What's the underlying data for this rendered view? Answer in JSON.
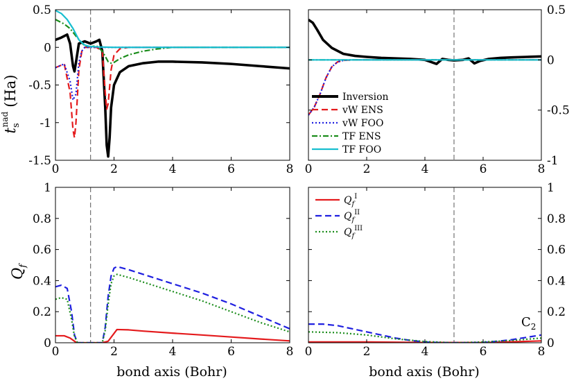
{
  "chart_data": [
    {
      "type": "line",
      "panel": "top-left",
      "ylabel_main": "t",
      "ylabel_sub": "s",
      "ylabel_sup": "nad",
      "ylabel_unit": "(Ha)",
      "xlim": [
        0,
        8
      ],
      "ylim": [
        -1.5,
        0.5
      ],
      "xticks": [
        "0",
        "2",
        "4",
        "6",
        "8"
      ],
      "yticks": [
        "0.5",
        "0",
        "-0.5",
        "-1",
        "-1.5"
      ],
      "ytick_values": [
        0.5,
        0,
        -0.5,
        -1,
        -1.5
      ],
      "vline": 1.2,
      "series": [
        {
          "name": "Inversion",
          "color": "#000000",
          "dash": "solid",
          "x": [
            0,
            0.2,
            0.4,
            0.5,
            0.6,
            0.65,
            0.7,
            0.8,
            1.0,
            1.2,
            1.4,
            1.5,
            1.6,
            1.7,
            1.75,
            1.8,
            1.85,
            1.9,
            2.0,
            2.2,
            2.5,
            3,
            3.5,
            4,
            5,
            6,
            7,
            8
          ],
          "y": [
            0.1,
            0.13,
            0.17,
            0.05,
            -0.25,
            -0.32,
            -0.2,
            0.05,
            0.08,
            0.05,
            0.08,
            0.1,
            -0.05,
            -0.8,
            -1.3,
            -1.45,
            -1.2,
            -0.8,
            -0.5,
            -0.33,
            -0.25,
            -0.21,
            -0.19,
            -0.19,
            -0.2,
            -0.22,
            -0.25,
            -0.28
          ]
        },
        {
          "name": "vW ENS",
          "color": "#e41a1c",
          "dash": "dash",
          "x": [
            0,
            0.3,
            0.5,
            0.6,
            0.65,
            0.7,
            0.8,
            0.9,
            1.0,
            1.1,
            1.2,
            1.4,
            1.6,
            1.7,
            1.75,
            1.8,
            1.9,
            2.0,
            2.2,
            2.5,
            3,
            3.5,
            4,
            8
          ],
          "y": [
            -0.27,
            -0.22,
            -0.6,
            -1.1,
            -1.2,
            -1.0,
            -0.3,
            -0.05,
            0,
            0,
            0,
            0,
            -0.05,
            -0.6,
            -0.82,
            -0.75,
            -0.3,
            -0.1,
            -0.02,
            0,
            0,
            0,
            0,
            0
          ]
        },
        {
          "name": "vW FOO",
          "color": "#1f1fe0",
          "dash": "dot",
          "x": [
            0,
            0.3,
            0.5,
            0.6,
            0.7,
            0.8,
            0.9,
            1.0,
            1.2,
            1.5,
            2,
            8
          ],
          "y": [
            -0.27,
            -0.22,
            -0.45,
            -0.7,
            -0.62,
            -0.2,
            -0.05,
            0,
            0,
            0,
            0,
            0
          ]
        },
        {
          "name": "TF ENS",
          "color": "#1a8c1a",
          "dash": "dashdot",
          "x": [
            0,
            0.3,
            0.5,
            0.7,
            0.9,
            1.0,
            1.1,
            1.2,
            1.4,
            1.6,
            1.7,
            1.8,
            1.9,
            2.0,
            2.2,
            2.5,
            3,
            3.5,
            4,
            5,
            8
          ],
          "y": [
            0.37,
            0.31,
            0.25,
            0.15,
            0.06,
            0.02,
            0.01,
            0.01,
            0.02,
            -0.05,
            -0.12,
            -0.19,
            -0.21,
            -0.2,
            -0.15,
            -0.1,
            -0.05,
            -0.02,
            0,
            0,
            0
          ]
        },
        {
          "name": "TF FOO",
          "color": "#17becf",
          "dash": "solid",
          "x": [
            0,
            0.2,
            0.4,
            0.6,
            0.8,
            1.0,
            1.2,
            1.5,
            2,
            8
          ],
          "y": [
            0.49,
            0.45,
            0.37,
            0.25,
            0.1,
            0.03,
            0.01,
            0.005,
            0,
            0
          ]
        }
      ]
    },
    {
      "type": "line",
      "panel": "top-right",
      "xlim": [
        0,
        8
      ],
      "ylim": [
        -1,
        0.5
      ],
      "xticks": [
        "0",
        "2",
        "4",
        "6",
        "8"
      ],
      "yticks": [
        "0.5",
        "0",
        "-0.5",
        "-1"
      ],
      "ytick_values": [
        0.5,
        0,
        -0.5,
        -1
      ],
      "vline": 5,
      "series": [
        {
          "name": "Inversion",
          "color": "#000000",
          "dash": "solid",
          "x": [
            0,
            0.15,
            0.3,
            0.5,
            0.8,
            1.2,
            1.6,
            2,
            2.5,
            3,
            3.5,
            4,
            4.2,
            4.4,
            4.6,
            4.8,
            5.0,
            5.3,
            5.5,
            5.7,
            5.9,
            6.2,
            6.6,
            7,
            7.5,
            8
          ],
          "y": [
            0.4,
            0.37,
            0.3,
            0.2,
            0.12,
            0.06,
            0.04,
            0.03,
            0.02,
            0.015,
            0.01,
            0.0,
            -0.02,
            -0.04,
            0.01,
            0.0,
            -0.005,
            0.0,
            0.015,
            -0.035,
            -0.01,
            0.01,
            0.02,
            0.025,
            0.03,
            0.035
          ]
        },
        {
          "name": "vW ENS",
          "color": "#e41a1c",
          "dash": "dash",
          "x": [
            0,
            0.2,
            0.4,
            0.6,
            0.8,
            1.0,
            1.2,
            1.5,
            2,
            8
          ],
          "y": [
            -0.55,
            -0.47,
            -0.34,
            -0.18,
            -0.07,
            -0.02,
            -0.005,
            0,
            0,
            0
          ]
        },
        {
          "name": "vW FOO",
          "color": "#1f1fe0",
          "dash": "dot",
          "x": [
            0,
            0.2,
            0.4,
            0.6,
            0.8,
            1.0,
            1.2,
            1.5,
            2,
            8
          ],
          "y": [
            -0.55,
            -0.47,
            -0.34,
            -0.18,
            -0.07,
            -0.02,
            -0.005,
            0,
            0,
            0
          ]
        },
        {
          "name": "TF ENS",
          "color": "#1a8c1a",
          "dash": "dashdot",
          "x": [
            0,
            8
          ],
          "y": [
            0,
            0
          ]
        },
        {
          "name": "TF FOO",
          "color": "#17becf",
          "dash": "solid",
          "x": [
            0,
            8
          ],
          "y": [
            0,
            0
          ]
        }
      ]
    },
    {
      "type": "line",
      "panel": "bottom-left",
      "ylabel_main": "Q",
      "ylabel_sub": "f",
      "xlabel": "bond axis (Bohr)",
      "xlim": [
        0,
        8
      ],
      "ylim": [
        0,
        1
      ],
      "xticks": [
        "0",
        "2",
        "4",
        "6",
        "8"
      ],
      "yticks": [
        "1",
        "0.8",
        "0.6",
        "0.4",
        "0.2",
        "0"
      ],
      "ytick_values": [
        1,
        0.8,
        0.6,
        0.4,
        0.2,
        0
      ],
      "vline": 1.2,
      "series": [
        {
          "name": "Q_f^I",
          "color": "#e41a1c",
          "dash": "solid",
          "x": [
            0,
            0.3,
            0.5,
            0.7,
            0.8,
            1.6,
            1.8,
            2.0,
            2.1,
            2.5,
            3,
            4,
            5,
            6,
            7,
            8
          ],
          "y": [
            0.045,
            0.045,
            0.03,
            0.003,
            0,
            0,
            0.01,
            0.06,
            0.085,
            0.083,
            0.075,
            0.062,
            0.05,
            0.037,
            0.024,
            0.012
          ]
        },
        {
          "name": "Q_f^II",
          "color": "#1f1fe0",
          "dash": "dash",
          "x": [
            0,
            0.2,
            0.4,
            0.55,
            0.65,
            0.75,
            0.8,
            1.6,
            1.7,
            1.8,
            1.9,
            2.0,
            2.1,
            2.3,
            2.5,
            3,
            3.5,
            4,
            5,
            6,
            7,
            7.5,
            8
          ],
          "y": [
            0.36,
            0.37,
            0.35,
            0.2,
            0.05,
            0,
            0,
            0,
            0.1,
            0.3,
            0.43,
            0.48,
            0.49,
            0.48,
            0.47,
            0.44,
            0.41,
            0.38,
            0.32,
            0.25,
            0.17,
            0.13,
            0.09
          ]
        },
        {
          "name": "Q_f^III",
          "color": "#1a8c1a",
          "dash": "dot",
          "x": [
            0,
            0.2,
            0.4,
            0.55,
            0.65,
            0.75,
            0.8,
            1.6,
            1.7,
            1.8,
            1.9,
            2.0,
            2.1,
            2.3,
            2.5,
            3,
            3.5,
            4,
            5,
            6,
            7,
            7.5,
            8
          ],
          "y": [
            0.28,
            0.29,
            0.28,
            0.15,
            0.04,
            0,
            0,
            0,
            0.08,
            0.25,
            0.38,
            0.43,
            0.44,
            0.43,
            0.42,
            0.39,
            0.36,
            0.33,
            0.27,
            0.2,
            0.13,
            0.1,
            0.07
          ]
        }
      ]
    },
    {
      "type": "line",
      "panel": "bottom-right",
      "xlabel": "bond axis (Bohr)",
      "annotation_main": "C",
      "annotation_sub": "2",
      "xlim": [
        0,
        8
      ],
      "ylim": [
        0,
        1
      ],
      "xticks": [
        "0",
        "2",
        "4",
        "6",
        "8"
      ],
      "yticks": [
        "1",
        "0.8",
        "0.6",
        "0.4",
        "0.2",
        "0"
      ],
      "ytick_values": [
        1,
        0.8,
        0.6,
        0.4,
        0.2,
        0
      ],
      "vline": 5,
      "series": [
        {
          "name": "Q_f^I",
          "color": "#e41a1c",
          "dash": "solid",
          "x": [
            0,
            2,
            4,
            6,
            7,
            8
          ],
          "y": [
            0.005,
            0.005,
            0.002,
            0.001,
            0.006,
            0.012
          ]
        },
        {
          "name": "Q_f^II",
          "color": "#1f1fe0",
          "dash": "dash",
          "x": [
            0,
            0.5,
            1,
            1.5,
            2,
            2.5,
            3,
            3.5,
            4,
            4.5,
            5,
            5.5,
            6,
            6.5,
            7,
            7.5,
            8
          ],
          "y": [
            0.12,
            0.12,
            0.11,
            0.09,
            0.07,
            0.05,
            0.03,
            0.015,
            0.005,
            0.001,
            0,
            0,
            0.002,
            0.01,
            0.02,
            0.035,
            0.05
          ]
        },
        {
          "name": "Q_f^III",
          "color": "#1a8c1a",
          "dash": "dot",
          "x": [
            0,
            1,
            2,
            3,
            4,
            5,
            6,
            7,
            8
          ],
          "y": [
            0.07,
            0.065,
            0.05,
            0.025,
            0.008,
            0,
            0.005,
            0.015,
            0.03
          ]
        }
      ]
    }
  ],
  "legend_top": {
    "placement": "bottom-left of top-right panel",
    "entries": [
      "Inversion",
      "vW ENS",
      "vW FOO",
      "TF ENS",
      "TF FOO"
    ]
  },
  "legend_bottom": {
    "placement": "top-left of bottom-right panel",
    "entries": [
      {
        "main": "Q",
        "sub": "f",
        "sup": "I"
      },
      {
        "main": "Q",
        "sub": "f",
        "sup": "II"
      },
      {
        "main": "Q",
        "sub": "f",
        "sup": "III"
      }
    ]
  }
}
